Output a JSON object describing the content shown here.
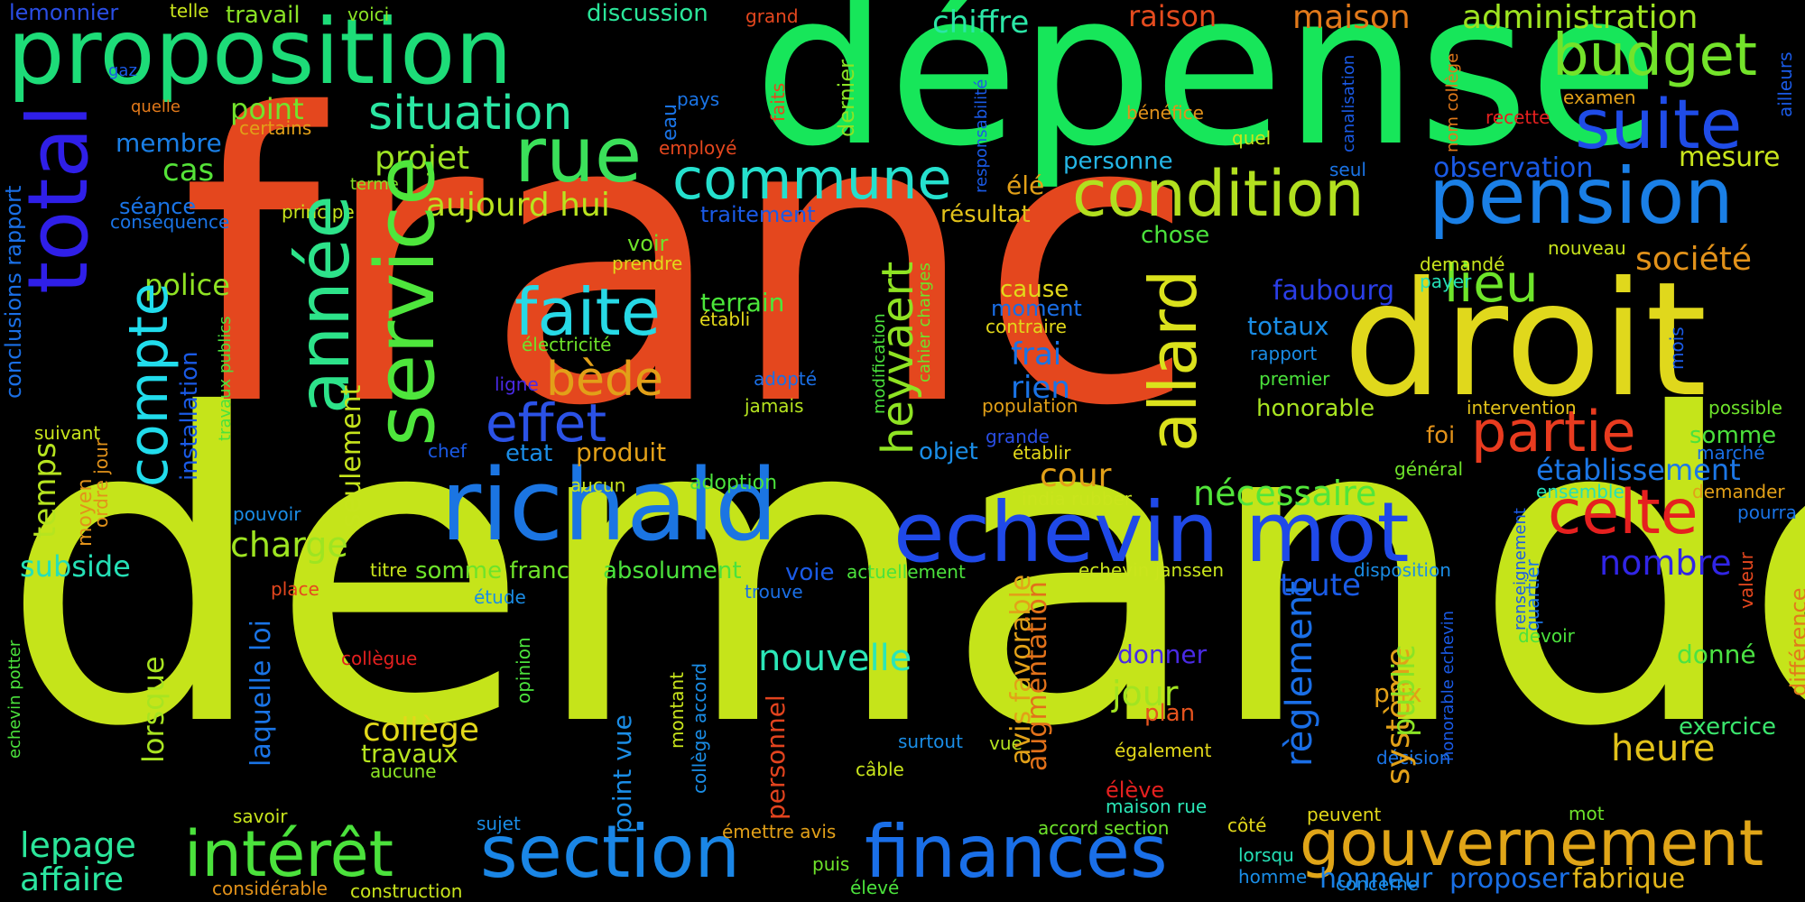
{
  "words": [
    {
      "text": "demande",
      "color": "#c5e41a"
    },
    {
      "text": "franc",
      "color": "#e4471e"
    },
    {
      "text": "dépense",
      "color": "#17e65a"
    },
    {
      "text": "droit",
      "color": "#e0d81c"
    },
    {
      "text": "proposition",
      "color": "#1ddc78"
    },
    {
      "text": "richald",
      "color": "#1b75e2"
    },
    {
      "text": "echevin mot",
      "color": "#1f49e8"
    },
    {
      "text": "total",
      "color": "#2f1fe8"
    },
    {
      "text": "service",
      "color": "#4ee63c"
    },
    {
      "text": "année",
      "color": "#2de38a"
    },
    {
      "text": "compte",
      "color": "#21dcec"
    },
    {
      "text": "section",
      "color": "#1a86e6"
    },
    {
      "text": "finances",
      "color": "#1a6fe8"
    },
    {
      "text": "gouvernement",
      "color": "#e0a518"
    },
    {
      "text": "intérêt",
      "color": "#4be23c"
    },
    {
      "text": "pension",
      "color": "#1a7fe6"
    },
    {
      "text": "budget",
      "color": "#73e32a"
    },
    {
      "text": "suite",
      "color": "#1f4ce8"
    },
    {
      "text": "condition",
      "color": "#b2e01f"
    },
    {
      "text": "rue",
      "color": "#3be05a"
    },
    {
      "text": "commune",
      "color": "#25e0ce"
    },
    {
      "text": "situation",
      "color": "#2be6a2"
    },
    {
      "text": "allard",
      "color": "#dbe21c"
    },
    {
      "text": "faite",
      "color": "#27d9e6"
    },
    {
      "text": "partie",
      "color": "#e83b1f"
    },
    {
      "text": "celte",
      "color": "#e5201f"
    },
    {
      "text": "lieu",
      "color": "#6ee52a"
    },
    {
      "text": "heyvaert",
      "color": "#8fe323"
    },
    {
      "text": "bède",
      "color": "#e2a018"
    },
    {
      "text": "effet",
      "color": "#2b52e6"
    },
    {
      "text": "nouvelle",
      "color": "#2be6b7"
    },
    {
      "text": "règlement",
      "color": "#1a6ee6"
    },
    {
      "text": "système",
      "color": "#e2a118"
    },
    {
      "text": "public",
      "color": "#8ae325"
    },
    {
      "text": "heure",
      "color": "#e2c21a"
    },
    {
      "text": "toute",
      "color": "#1a5be6"
    },
    {
      "text": "nombre",
      "color": "#3125e6"
    },
    {
      "text": "nécessaire",
      "color": "#52e63a"
    },
    {
      "text": "établissement",
      "color": "#1c77e6"
    },
    {
      "text": "société",
      "color": "#e2921a"
    },
    {
      "text": "observation",
      "color": "#1a5ae6"
    },
    {
      "text": "mesure",
      "color": "#c9e51c"
    },
    {
      "text": "administration",
      "color": "#9ee421"
    },
    {
      "text": "maison",
      "color": "#e2791a"
    },
    {
      "text": "raison",
      "color": "#e54b1e"
    },
    {
      "text": "chiffre",
      "color": "#2be6a6"
    },
    {
      "text": "projet",
      "color": "#9de323"
    },
    {
      "text": "aujourd hui",
      "color": "#b9e41f"
    },
    {
      "text": "cas",
      "color": "#55e338"
    },
    {
      "text": "membre",
      "color": "#1a7fe6"
    },
    {
      "text": "point",
      "color": "#73e32c"
    },
    {
      "text": "police",
      "color": "#8fe323"
    },
    {
      "text": "temps",
      "color": "#b6e41f"
    },
    {
      "text": "subside",
      "color": "#25e0b6"
    },
    {
      "text": "charge",
      "color": "#9ee421"
    },
    {
      "text": "seulement",
      "color": "#c6e41c"
    },
    {
      "text": "lorsque",
      "color": "#a8e421"
    },
    {
      "text": "laquelle loi",
      "color": "#1a74e6"
    },
    {
      "text": "collège",
      "color": "#e2d81a"
    },
    {
      "text": "travaux",
      "color": "#b6e41f"
    },
    {
      "text": "lepage",
      "color": "#2be69a"
    },
    {
      "text": "affaire",
      "color": "#2be6a0"
    },
    {
      "text": "cour",
      "color": "#e2a018"
    },
    {
      "text": "faubourg",
      "color": "#2a3ee6"
    },
    {
      "text": "totaux",
      "color": "#1a8de6"
    },
    {
      "text": "frai",
      "color": "#1a74e6"
    },
    {
      "text": "rien",
      "color": "#1a74e6"
    },
    {
      "text": "moment",
      "color": "#1a6ee6"
    },
    {
      "text": "cause",
      "color": "#e2d81a"
    },
    {
      "text": "jour",
      "color": "#a2e421"
    },
    {
      "text": "donner",
      "color": "#4a2ae6"
    },
    {
      "text": "plan",
      "color": "#e5531e"
    },
    {
      "text": "prix",
      "color": "#e2a018"
    },
    {
      "text": "exercice",
      "color": "#3be66e"
    },
    {
      "text": "donné",
      "color": "#4be243"
    },
    {
      "text": "avis favorable",
      "color": "#e2a118"
    },
    {
      "text": "augmentation",
      "color": "#e2711a"
    },
    {
      "text": "produit",
      "color": "#e2a018"
    },
    {
      "text": "etat",
      "color": "#1a8de6"
    },
    {
      "text": "terrain",
      "color": "#4be63a"
    },
    {
      "text": "voie",
      "color": "#1a5ae6"
    },
    {
      "text": "personnel",
      "color": "#e2431e"
    },
    {
      "text": "point vue",
      "color": "#1a8de6"
    },
    {
      "text": "honneur",
      "color": "#1a7fe6"
    },
    {
      "text": "proposer",
      "color": "#1a6fe6"
    },
    {
      "text": "fabrique",
      "color": "#e2b61a"
    },
    {
      "text": "conclusions rapport",
      "color": "#1a6fe6"
    },
    {
      "text": "installation",
      "color": "#1a5ae6"
    },
    {
      "text": "somme franc",
      "color": "#6ee32a"
    },
    {
      "text": "absolument",
      "color": "#4be23c"
    },
    {
      "text": "honorable",
      "color": "#a8e421"
    },
    {
      "text": "résultat",
      "color": "#e2c21a"
    },
    {
      "text": "chose",
      "color": "#4be23c"
    },
    {
      "text": "personne",
      "color": "#25b6e6"
    },
    {
      "text": "traitement",
      "color": "#1a5ae6"
    },
    {
      "text": "séance",
      "color": "#1a74e6"
    },
    {
      "text": "moyen",
      "color": "#e2921a"
    },
    {
      "text": "ordre jour",
      "color": "#e2921a"
    },
    {
      "text": "somme",
      "color": "#4be23c"
    },
    {
      "text": "foi",
      "color": "#e2921a"
    },
    {
      "text": "objet",
      "color": "#1a8de6"
    },
    {
      "text": "voir",
      "color": "#6ee32a"
    },
    {
      "text": "élé",
      "color": "#e2a018"
    },
    {
      "text": "lemonnier",
      "color": "#2a4ee6"
    },
    {
      "text": "travail",
      "color": "#8ae325"
    },
    {
      "text": "telle",
      "color": "#c9e51c"
    },
    {
      "text": "voici",
      "color": "#8ae325"
    },
    {
      "text": "discussion",
      "color": "#2be69a"
    },
    {
      "text": "grand",
      "color": "#e5471e"
    },
    {
      "text": "gaz",
      "color": "#1a5ae6"
    },
    {
      "text": "quelle",
      "color": "#e2791a"
    },
    {
      "text": "certains",
      "color": "#e2a018"
    },
    {
      "text": "terme",
      "color": "#8ae325"
    },
    {
      "text": "principe",
      "color": "#c9e51c"
    },
    {
      "text": "conséquence",
      "color": "#1a74e6"
    },
    {
      "text": "prendre",
      "color": "#e2d81a"
    },
    {
      "text": "établi",
      "color": "#e2d81a"
    },
    {
      "text": "électricité",
      "color": "#6ee32a"
    },
    {
      "text": "ligne",
      "color": "#4a2ae6"
    },
    {
      "text": "adopté",
      "color": "#1a6fe6"
    },
    {
      "text": "jamais",
      "color": "#b6e41f"
    },
    {
      "text": "aucun",
      "color": "#c9e51c"
    },
    {
      "text": "adoption",
      "color": "#4be23c"
    },
    {
      "text": "chef",
      "color": "#1a5ae6"
    },
    {
      "text": "pouvoir",
      "color": "#1a8de6"
    },
    {
      "text": "titre",
      "color": "#c9e51c"
    },
    {
      "text": "place",
      "color": "#e5471e"
    },
    {
      "text": "étude",
      "color": "#1a8de6"
    },
    {
      "text": "trouve",
      "color": "#1a6fe6"
    },
    {
      "text": "actuellement",
      "color": "#4be23c"
    },
    {
      "text": "collègue",
      "color": "#e5201f"
    },
    {
      "text": "opinion",
      "color": "#4be23c"
    },
    {
      "text": "aucune",
      "color": "#8ae325"
    },
    {
      "text": "savoir",
      "color": "#c9e51c"
    },
    {
      "text": "sujet",
      "color": "#1a8de6"
    },
    {
      "text": "considérable",
      "color": "#e2921a"
    },
    {
      "text": "construction",
      "color": "#c9e51c"
    },
    {
      "text": "émettre avis",
      "color": "#e2a018"
    },
    {
      "text": "élevé",
      "color": "#4be23c"
    },
    {
      "text": "puis",
      "color": "#6ee32a"
    },
    {
      "text": "câble",
      "color": "#c9e51c"
    },
    {
      "text": "surtout",
      "color": "#1a8de6"
    },
    {
      "text": "vue",
      "color": "#b6e41f"
    },
    {
      "text": "montant",
      "color": "#c9e51c"
    },
    {
      "text": "collège accord",
      "color": "#1a8de6"
    },
    {
      "text": "également",
      "color": "#e2d81a"
    },
    {
      "text": "élève",
      "color": "#e5201f"
    },
    {
      "text": "maison rue",
      "color": "#2be6b7"
    },
    {
      "text": "accord section",
      "color": "#6ee32a"
    },
    {
      "text": "côté",
      "color": "#e2d81a"
    },
    {
      "text": "peuvent",
      "color": "#e2d81a"
    },
    {
      "text": "lorsqu",
      "color": "#25e0b6"
    },
    {
      "text": "homme",
      "color": "#1a8de6"
    },
    {
      "text": "concerne",
      "color": "#1a8de6"
    },
    {
      "text": "mot",
      "color": "#6ee32a"
    },
    {
      "text": "décision",
      "color": "#1a74e6"
    },
    {
      "text": "india rubber",
      "color": "#c9e51c"
    },
    {
      "text": "echevin janssen",
      "color": "#c9e51c"
    },
    {
      "text": "disposition",
      "color": "#1a8de6"
    },
    {
      "text": "contraire",
      "color": "#e2d81a"
    },
    {
      "text": "établir",
      "color": "#e2d81a"
    },
    {
      "text": "grande",
      "color": "#2a4ee6"
    },
    {
      "text": "population",
      "color": "#e2a018"
    },
    {
      "text": "intervention",
      "color": "#e2c21a"
    },
    {
      "text": "premier",
      "color": "#4be23c"
    },
    {
      "text": "rapport",
      "color": "#1a8de6"
    },
    {
      "text": "général",
      "color": "#6ee32a"
    },
    {
      "text": "marché",
      "color": "#1a6fe6"
    },
    {
      "text": "ensemble",
      "color": "#25e0b6"
    },
    {
      "text": "demander",
      "color": "#e2a018"
    },
    {
      "text": "pourra",
      "color": "#1a74e6"
    },
    {
      "text": "possible",
      "color": "#6ee32a"
    },
    {
      "text": "quartier",
      "color": "#1a74e6"
    },
    {
      "text": "valeur",
      "color": "#e5471e"
    },
    {
      "text": "devoir",
      "color": "#4be23c"
    },
    {
      "text": "nouveau",
      "color": "#c9e51c"
    },
    {
      "text": "demandé",
      "color": "#c9e51c"
    },
    {
      "text": "payer",
      "color": "#25e0b6"
    },
    {
      "text": "seul",
      "color": "#1a74e6"
    },
    {
      "text": "quel",
      "color": "#c9e51c"
    },
    {
      "text": "bénéfice",
      "color": "#e2921a"
    },
    {
      "text": "recette",
      "color": "#e5201f"
    },
    {
      "text": "examen",
      "color": "#e2a018"
    },
    {
      "text": "pays",
      "color": "#1a74e6"
    },
    {
      "text": "eau",
      "color": "#1a74e6"
    },
    {
      "text": "employé",
      "color": "#e5471e"
    },
    {
      "text": "dernier",
      "color": "#8ae325"
    },
    {
      "text": "faits",
      "color": "#e5471e"
    },
    {
      "text": "responsabilité",
      "color": "#1a5ae6"
    },
    {
      "text": "canalisation",
      "color": "#1a5ae6"
    },
    {
      "text": "nom collège",
      "color": "#e2791a"
    },
    {
      "text": "ailleurs",
      "color": "#1a5ae6"
    },
    {
      "text": "mois",
      "color": "#1a5ae6"
    },
    {
      "text": "différence",
      "color": "#e2791a"
    },
    {
      "text": "renseignement",
      "color": "#1a5ae6"
    },
    {
      "text": "honorable echevin",
      "color": "#1a5ae6"
    },
    {
      "text": "modification",
      "color": "#4be23c"
    },
    {
      "text": "cahier charges",
      "color": "#6ee32a"
    },
    {
      "text": "travaux publics",
      "color": "#4be23c"
    },
    {
      "text": "echevin potter",
      "color": "#4be23c"
    },
    {
      "text": "suivant",
      "color": "#c9e51c"
    }
  ]
}
